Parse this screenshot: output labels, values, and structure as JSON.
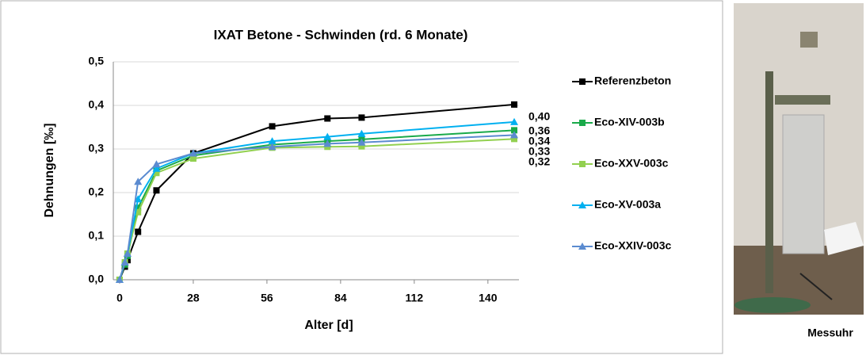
{
  "chart_data": {
    "type": "line",
    "title": "IXAT Betone - Schwinden (rd. 6 Monate)",
    "x_label": "Alter [d]",
    "y_label": "Dehnungen [‰]",
    "x": [
      0,
      2,
      3,
      7,
      14,
      28,
      58,
      79,
      92,
      150
    ],
    "series": [
      {
        "name": "Referenzbeton",
        "color": "#000000",
        "marker": "square",
        "values": [
          0,
          0.03,
          0.045,
          0.11,
          0.205,
          0.29,
          0.352,
          0.37,
          0.372,
          0.402
        ],
        "end_label": "0,40"
      },
      {
        "name": "Eco-XIV-003b",
        "color": "#1aaa4a",
        "marker": "square",
        "values": [
          0,
          0.035,
          0.055,
          0.165,
          0.25,
          0.285,
          0.31,
          0.318,
          0.322,
          0.343
        ],
        "end_label": "0,34"
      },
      {
        "name": "Eco-XXV-003c",
        "color": "#92d050",
        "marker": "square",
        "values": [
          0,
          0.04,
          0.06,
          0.155,
          0.245,
          0.278,
          0.303,
          0.305,
          0.306,
          0.323
        ],
        "end_label": "0,32"
      },
      {
        "name": "Eco-XV-003a",
        "color": "#00b0f0",
        "marker": "triangle",
        "values": [
          0,
          0.04,
          0.06,
          0.185,
          0.255,
          0.29,
          0.318,
          0.328,
          0.335,
          0.362
        ],
        "end_label": "0,36"
      },
      {
        "name": "Eco-XXIV-003c",
        "color": "#5b8bd0",
        "marker": "triangle",
        "values": [
          0,
          0.04,
          0.06,
          0.225,
          0.265,
          0.29,
          0.305,
          0.312,
          0.315,
          0.332
        ],
        "end_label": "0,33"
      }
    ],
    "xlim": [
      -2.4,
      151.8
    ],
    "xticks": [
      0,
      28,
      56,
      84,
      112,
      140
    ],
    "ylim": [
      0,
      0.5
    ],
    "yticks": [
      {
        "value": 0,
        "label": "0,0"
      },
      {
        "value": 0.1,
        "label": "0,1"
      },
      {
        "value": 0.2,
        "label": "0,2"
      },
      {
        "value": 0.3,
        "label": "0,3"
      },
      {
        "value": 0.4,
        "label": "0,4"
      },
      {
        "value": 0.5,
        "label": "0,5"
      }
    ],
    "grid": true,
    "legend": "right"
  },
  "photo": {
    "caption": "Messuhr"
  }
}
